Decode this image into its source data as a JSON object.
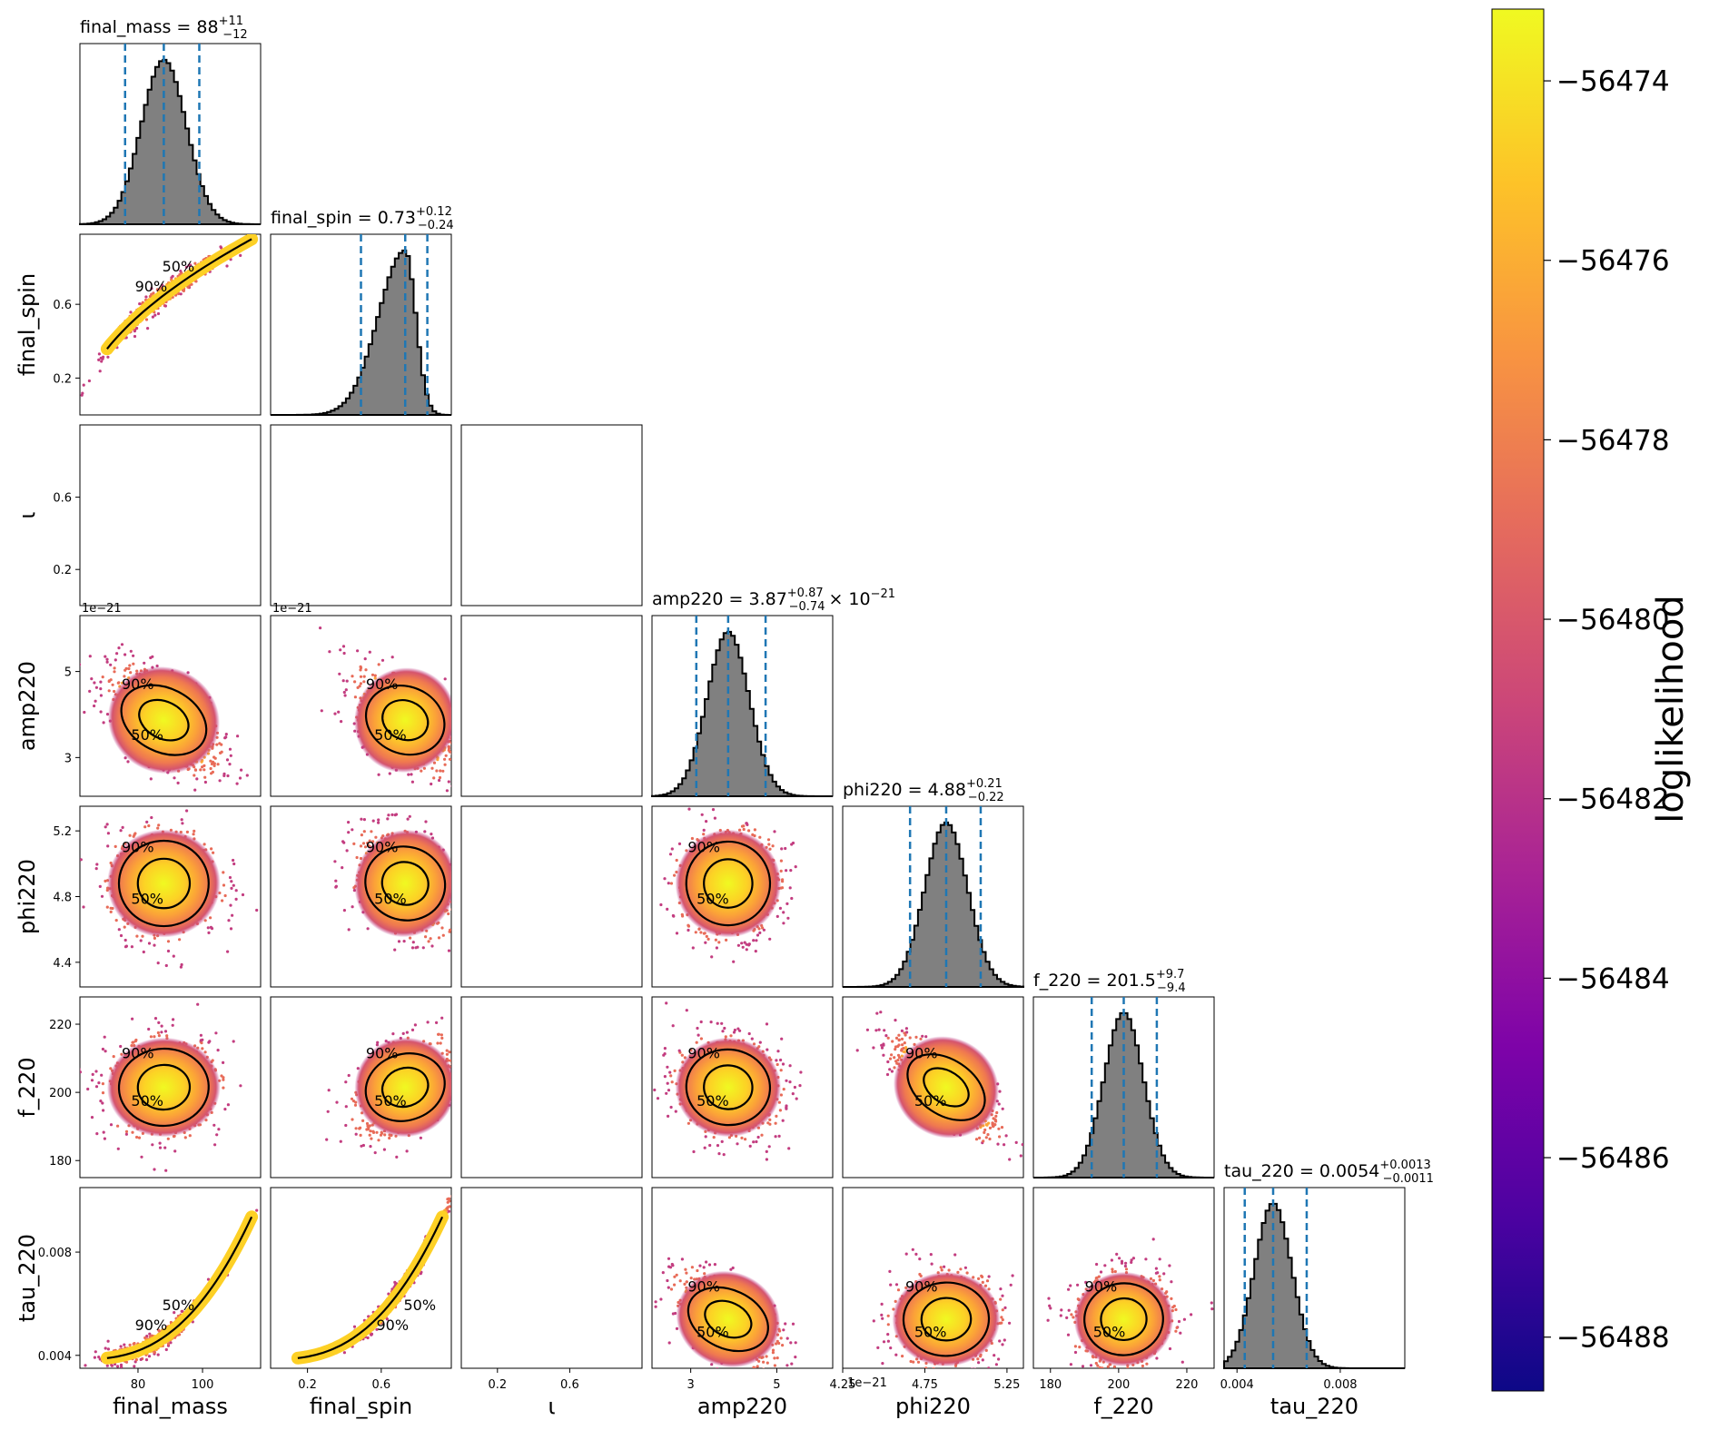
{
  "chart_data": {
    "type": "scatter",
    "variant": "corner-plot",
    "parameters": [
      {
        "name": "final_mass",
        "axis_label": "final_mass",
        "title": "final_mass = 88",
        "median": 88,
        "plus": "+11",
        "minus": "−12",
        "range": [
          62,
          118
        ],
        "ticks": [
          80,
          100
        ],
        "tick_labels": [
          "80",
          "100"
        ],
        "quantiles": [
          76,
          88,
          99
        ]
      },
      {
        "name": "final_spin",
        "axis_label": "final_spin",
        "title": "final_spin = 0.73",
        "median": 0.73,
        "plus": "+0.12",
        "minus": "−0.24",
        "range": [
          0.0,
          0.98
        ],
        "ticks": [
          0.2,
          0.6
        ],
        "tick_labels": [
          "0.2",
          "0.6"
        ],
        "quantiles": [
          0.49,
          0.73,
          0.85
        ]
      },
      {
        "name": "iota",
        "axis_label": "ι",
        "title": "",
        "range": [
          0.0,
          1.0
        ],
        "ticks": [
          0.2,
          0.6
        ],
        "tick_labels": [
          "0.2",
          "0.6"
        ]
      },
      {
        "name": "amp220",
        "axis_label": "amp220",
        "title": "amp220 = 3.87",
        "title_suffix": "× 10",
        "title_exp": "−21",
        "median": 3.87,
        "plus": "+0.87",
        "minus": "−0.74",
        "range": [
          2.1,
          6.3
        ],
        "ticks": [
          3,
          5
        ],
        "tick_labels": [
          "3",
          "5"
        ],
        "offset_label": "1e−21",
        "quantiles": [
          3.13,
          3.87,
          4.74
        ]
      },
      {
        "name": "phi220",
        "axis_label": "phi220",
        "title": "phi220 = 4.88",
        "median": 4.88,
        "plus": "+0.21",
        "minus": "−0.22",
        "range": [
          4.25,
          5.35
        ],
        "ticks": [
          4.25,
          4.75,
          5.25
        ],
        "tick_labels": [
          "4.25",
          "4.75",
          "5.25"
        ],
        "y_ticks": [
          4.4,
          4.8,
          5.2
        ],
        "y_tick_labels": [
          "4.4",
          "4.8",
          "5.2"
        ],
        "quantiles": [
          4.66,
          4.88,
          5.09
        ]
      },
      {
        "name": "f_220",
        "axis_label": "f_220",
        "title": "f_220 = 201.5",
        "median": 201.5,
        "plus": "+9.7",
        "minus": "−9.4",
        "range": [
          175,
          228
        ],
        "ticks": [
          180,
          200,
          220
        ],
        "tick_labels": [
          "180",
          "200",
          "220"
        ],
        "quantiles": [
          192.1,
          201.5,
          211.2
        ]
      },
      {
        "name": "tau_220",
        "axis_label": "tau_220",
        "title": "tau_220 = 0.0054",
        "median": 0.0054,
        "plus": "+0.0013",
        "minus": "−0.0011",
        "range": [
          0.0035,
          0.0105
        ],
        "ticks": [
          0.004,
          0.008
        ],
        "tick_labels": [
          "0.004",
          "0.008"
        ],
        "quantiles": [
          0.0043,
          0.0054,
          0.0067
        ]
      }
    ],
    "contour_labels": [
      "50%",
      "90%"
    ],
    "colorbar": {
      "label": "loglikelihood",
      "cmap": "plasma",
      "range": [
        -56488.6,
        -56473.2
      ],
      "ticks": [
        -56474,
        -56476,
        -56478,
        -56480,
        -56482,
        -56484,
        -56486,
        -56488
      ],
      "tick_labels": [
        "−56474",
        "−56476",
        "−56478",
        "−56480",
        "−56482",
        "−56484",
        "−56486",
        "−56488"
      ]
    },
    "colors": {
      "histogram_fill": "#808080",
      "quantile_line": "#1f77b4",
      "contour": "#000000"
    }
  }
}
